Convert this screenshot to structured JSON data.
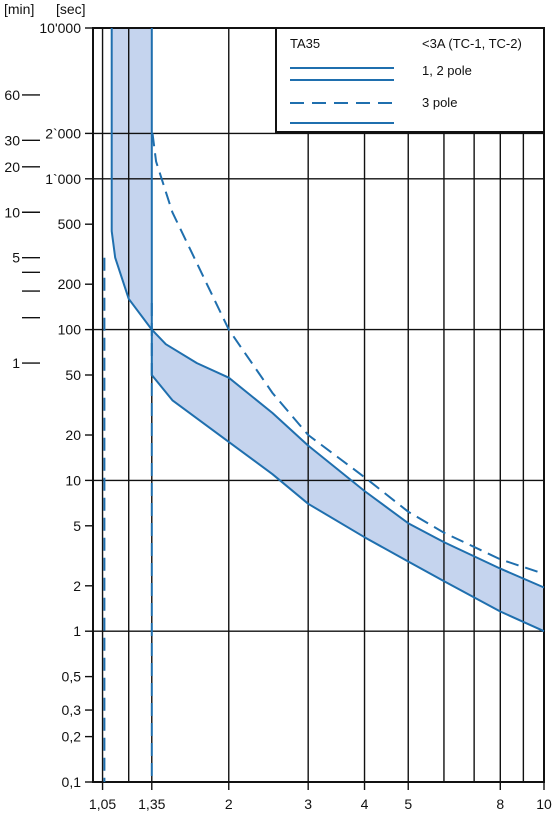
{
  "chart_data": {
    "type": "line",
    "title": "",
    "x_scale": "log",
    "y_scale": "log",
    "xlim": [
      1,
      10
    ],
    "ylim": [
      0.1,
      10000
    ],
    "x_ticks": [
      {
        "value": 1.05,
        "label": "1,05"
      },
      {
        "value": 1.35,
        "label": "1,35"
      },
      {
        "value": 2,
        "label": "2"
      },
      {
        "value": 3,
        "label": "3"
      },
      {
        "value": 4,
        "label": "4"
      },
      {
        "value": 5,
        "label": "5"
      },
      {
        "value": 8,
        "label": "8"
      },
      {
        "value": 10,
        "label": "10"
      }
    ],
    "x_gridlines": [
      1,
      1.05,
      1.2,
      1.35,
      2,
      3,
      4,
      5,
      6,
      7,
      8,
      9,
      10
    ],
    "y_ticks": [
      {
        "value": 10000,
        "label": "10'000"
      },
      {
        "value": 2000,
        "label": "2`000"
      },
      {
        "value": 1000,
        "label": "1`000"
      },
      {
        "value": 500,
        "label": "500"
      },
      {
        "value": 200,
        "label": "200"
      },
      {
        "value": 100,
        "label": "100"
      },
      {
        "value": 50,
        "label": "50"
      },
      {
        "value": 20,
        "label": "20"
      },
      {
        "value": 10,
        "label": "10"
      },
      {
        "value": 5,
        "label": "5"
      },
      {
        "value": 2,
        "label": "2"
      },
      {
        "value": 1,
        "label": "1"
      },
      {
        "value": 0.5,
        "label": "0,5"
      },
      {
        "value": 0.3,
        "label": "0,3"
      },
      {
        "value": 0.2,
        "label": "0,2"
      },
      {
        "value": 0.1,
        "label": "0,1"
      }
    ],
    "y_gridlines": [
      0.1,
      1,
      10,
      100,
      1000,
      2000,
      10000
    ],
    "y_label_left": "[min]",
    "y_label_right": "[sec]",
    "minute_ticks": [
      {
        "value": 3600,
        "label": "60"
      },
      {
        "value": 1800,
        "label": "30"
      },
      {
        "value": 1200,
        "label": "20"
      },
      {
        "value": 600,
        "label": "10"
      },
      {
        "value": 300,
        "label": "5"
      },
      {
        "value": 240,
        "label": ""
      },
      {
        "value": 180,
        "label": ""
      },
      {
        "value": 120,
        "label": ""
      },
      {
        "value": 60,
        "label": "1"
      }
    ],
    "legend": {
      "title": "TA35",
      "current_note": "<3A (TC-1, TC-2)",
      "entries": [
        {
          "label": "1, 2 pole",
          "style": "solid"
        },
        {
          "label": "3 pole",
          "style": "dashed"
        }
      ],
      "position": "top-right"
    },
    "colors": {
      "curve": "#1f6fae",
      "band": "#c5d4ee",
      "grid": "#111111"
    },
    "series": [
      {
        "style": "solid",
        "points": [
          [
            1.1,
            10000
          ],
          [
            1.1,
            450
          ],
          [
            1.12,
            300
          ],
          [
            1.2,
            160
          ],
          [
            1.35,
            100
          ],
          [
            1.45,
            80
          ],
          [
            1.7,
            60
          ],
          [
            2,
            48
          ],
          [
            2.5,
            28
          ],
          [
            3,
            17
          ],
          [
            4,
            8.5
          ],
          [
            5,
            5.2
          ],
          [
            6,
            3.9
          ],
          [
            8,
            2.6
          ],
          [
            10,
            1.95
          ]
        ]
      },
      {
        "style": "solid",
        "points": [
          [
            1.35,
            10000
          ],
          [
            1.35,
            50
          ],
          [
            1.5,
            34
          ],
          [
            2,
            18
          ],
          [
            2.5,
            11
          ],
          [
            3,
            7
          ],
          [
            4,
            4.2
          ],
          [
            5,
            2.9
          ],
          [
            6,
            2.15
          ],
          [
            8,
            1.35
          ],
          [
            10,
            1.0
          ]
        ]
      },
      {
        "style": "dashed",
        "points": [
          [
            1.355,
            2000
          ],
          [
            1.38,
            1300
          ],
          [
            1.5,
            600
          ],
          [
            2,
            100
          ],
          [
            2.5,
            38
          ],
          [
            3,
            20
          ],
          [
            4,
            10.5
          ],
          [
            5,
            6.2
          ],
          [
            6,
            4.5
          ],
          [
            8,
            3.0
          ],
          [
            10,
            2.4
          ]
        ]
      },
      {
        "style": "dashed",
        "points": [
          [
            1.06,
            300
          ],
          [
            1.06,
            0.1
          ]
        ]
      },
      {
        "style": "dashed",
        "points": [
          [
            1.35,
            150
          ],
          [
            1.35,
            0.1
          ]
        ]
      }
    ]
  }
}
